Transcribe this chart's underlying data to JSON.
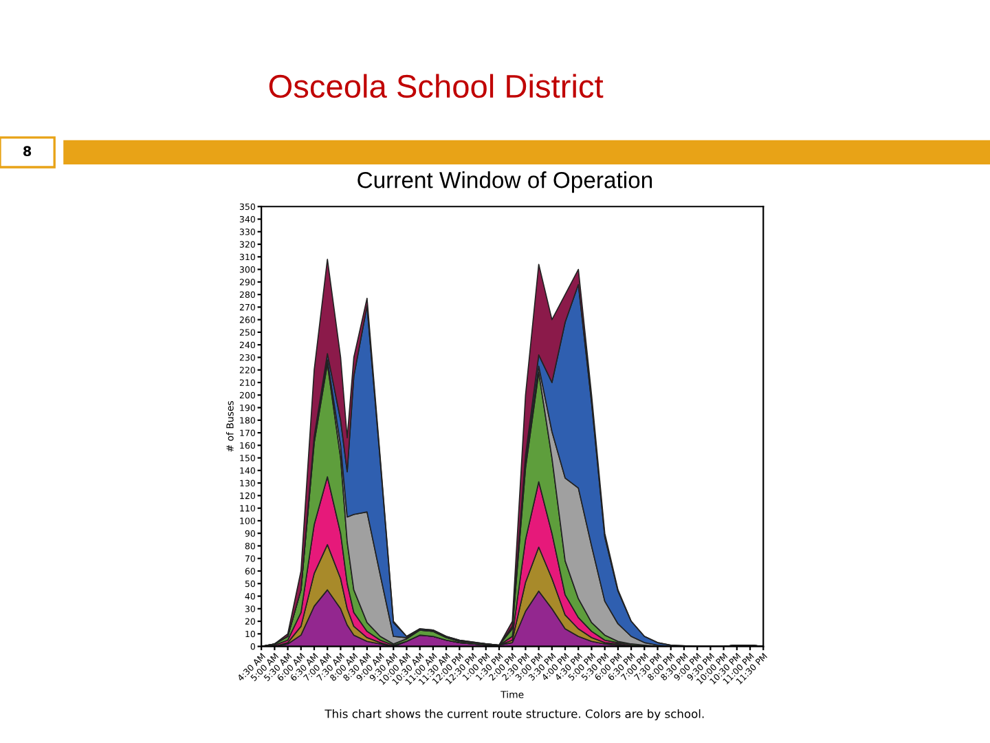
{
  "chart_data": {
    "type": "area",
    "stacked": true,
    "title": "Osceola School District",
    "subtitle": "Current Window of Operation",
    "xlabel": "Time",
    "ylabel": "# of Buses",
    "annotations": [
      "8",
      "This chart shows the current route structure. Colors are by school."
    ],
    "x": [
      4.5,
      5,
      5.5,
      6,
      6.5,
      7,
      7.5,
      7.75,
      8,
      8.5,
      9,
      9.5,
      10,
      10.5,
      11,
      11.5,
      12,
      13,
      13.5,
      14,
      14.5,
      15,
      15.5,
      16,
      16.5,
      17,
      17.5,
      18,
      18.5,
      19,
      19.5,
      20,
      21,
      22,
      22.5,
      23,
      23.5
    ],
    "series": [
      {
        "color": "#93278f",
        "values": [
          0,
          0,
          2,
          9,
          32,
          45,
          30,
          17,
          9,
          4,
          2,
          0,
          4,
          9,
          8,
          5,
          3,
          1,
          1,
          3,
          28,
          44,
          30,
          14,
          8,
          4,
          2,
          1,
          0,
          0,
          0,
          0,
          0,
          0,
          1,
          1,
          0
        ]
      },
      {
        "color": "#a88a2a",
        "values": [
          0,
          0,
          1,
          7,
          26,
          36,
          24,
          13,
          7,
          3,
          1,
          0,
          0,
          0,
          0,
          0,
          0,
          0,
          0,
          2,
          23,
          35,
          24,
          11,
          6,
          3,
          1,
          1,
          0,
          0,
          0,
          0,
          0,
          0,
          0,
          0,
          0
        ]
      },
      {
        "color": "#e6197a",
        "values": [
          0,
          1,
          2,
          11,
          39,
          54,
          36,
          20,
          11,
          5,
          2,
          1,
          0,
          0,
          0,
          0,
          0,
          0,
          0,
          3,
          34,
          52,
          36,
          16,
          9,
          5,
          2,
          1,
          1,
          0,
          0,
          0,
          0,
          0,
          0,
          0,
          0
        ]
      },
      {
        "color": "#5e9e3c",
        "values": [
          0,
          1,
          3,
          18,
          65,
          90,
          60,
          33,
          18,
          7,
          3,
          1,
          2,
          4,
          4,
          2,
          1,
          1,
          0,
          6,
          57,
          87,
          60,
          27,
          15,
          7,
          4,
          1,
          1,
          1,
          0,
          0,
          0,
          0,
          0,
          0,
          0
        ]
      },
      {
        "color": "#a0a0a0",
        "values": [
          0,
          0,
          0,
          0,
          2,
          3,
          10,
          20,
          60,
          88,
          49,
          6,
          1,
          0,
          0,
          0,
          0,
          0,
          0,
          1,
          4,
          5,
          21,
          66,
          88,
          61,
          27,
          14,
          6,
          2,
          1,
          0,
          0,
          0,
          0,
          0,
          0
        ]
      },
      {
        "color": "#2f5fb0",
        "values": [
          0,
          0,
          0,
          0,
          3,
          5,
          20,
          36,
          110,
          164,
          91,
          11,
          1,
          1,
          1,
          1,
          1,
          0,
          0,
          1,
          6,
          9,
          39,
          124,
          162,
          114,
          51,
          26,
          12,
          5,
          2,
          1,
          0,
          0,
          0,
          0,
          0
        ]
      },
      {
        "color": "#8b1a4a",
        "values": [
          0,
          0,
          2,
          15,
          53,
          75,
          50,
          27,
          15,
          6,
          2,
          1,
          0,
          0,
          0,
          0,
          0,
          0,
          0,
          4,
          48,
          72,
          50,
          22,
          12,
          6,
          3,
          1,
          0,
          0,
          0,
          0,
          0,
          0,
          0,
          0,
          0
        ]
      }
    ],
    "xlim": [
      4.5,
      23.5
    ],
    "ylim": [
      0,
      350
    ],
    "yticks": [
      0,
      10,
      20,
      30,
      40,
      50,
      60,
      70,
      80,
      90,
      100,
      110,
      120,
      130,
      140,
      150,
      160,
      170,
      180,
      190,
      200,
      210,
      220,
      230,
      240,
      250,
      260,
      270,
      280,
      290,
      300,
      310,
      320,
      330,
      340,
      350
    ],
    "xticks": [
      {
        "value": 4.5,
        "label": "4:30 AM"
      },
      {
        "value": 5,
        "label": "5:00 AM"
      },
      {
        "value": 5.5,
        "label": "5:30 AM"
      },
      {
        "value": 6,
        "label": "6:00 AM"
      },
      {
        "value": 6.5,
        "label": "6:30 AM"
      },
      {
        "value": 7,
        "label": "7:00 AM"
      },
      {
        "value": 7.5,
        "label": "7:30 AM"
      },
      {
        "value": 8,
        "label": "8:00 AM"
      },
      {
        "value": 8.5,
        "label": "8:30 AM"
      },
      {
        "value": 9,
        "label": "9:00 AM"
      },
      {
        "value": 9.5,
        "label": "9:30 AM"
      },
      {
        "value": 10,
        "label": "10:00 AM"
      },
      {
        "value": 10.5,
        "label": "10:30 AM"
      },
      {
        "value": 11,
        "label": "11:00 AM"
      },
      {
        "value": 11.5,
        "label": "11:30 AM"
      },
      {
        "value": 12,
        "label": "12:00 PM"
      },
      {
        "value": 12.5,
        "label": "12:30 PM"
      },
      {
        "value": 13,
        "label": "1:00 PM"
      },
      {
        "value": 13.5,
        "label": "1:30 PM"
      },
      {
        "value": 14,
        "label": "2:00 PM"
      },
      {
        "value": 14.5,
        "label": "2:30 PM"
      },
      {
        "value": 15,
        "label": "3:00 PM"
      },
      {
        "value": 15.5,
        "label": "3:30 PM"
      },
      {
        "value": 16,
        "label": "4:00 PM"
      },
      {
        "value": 16.5,
        "label": "4:30 PM"
      },
      {
        "value": 17,
        "label": "5:00 PM"
      },
      {
        "value": 17.5,
        "label": "5:30 PM"
      },
      {
        "value": 18,
        "label": "6:00 PM"
      },
      {
        "value": 18.5,
        "label": "6:30 PM"
      },
      {
        "value": 19,
        "label": "7:00 PM"
      },
      {
        "value": 19.5,
        "label": "7:30 PM"
      },
      {
        "value": 20,
        "label": "8:00 PM"
      },
      {
        "value": 20.5,
        "label": "8:30 PM"
      },
      {
        "value": 21,
        "label": "9:00 PM"
      },
      {
        "value": 21.5,
        "label": "9:30 PM"
      },
      {
        "value": 22,
        "label": "10:00 PM"
      },
      {
        "value": 22.5,
        "label": "10:30 PM"
      },
      {
        "value": 23,
        "label": "11:00 PM"
      },
      {
        "value": 23.5,
        "label": "11:30 PM"
      }
    ],
    "grid": false,
    "legend": false
  }
}
